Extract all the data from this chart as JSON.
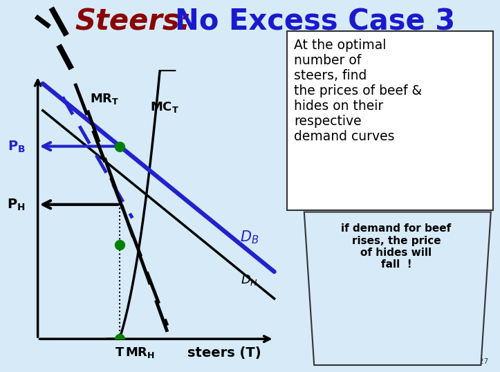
{
  "bg_color": "#d6eaf8",
  "title_steers": "Steers:",
  "title_rest": "  No Excess Case 3",
  "title_steers_color": "#8B0000",
  "title_rest_color": "#1a1acd",
  "title_fontsize": 30,
  "text_box_text": "At the optimal\nnumber of\nsteers, find\nthe prices of beef &\nhides on their\nrespective\ndemand curves",
  "trapezoid_text": "if demand for beef\nrises, the price\nof hides will\nfall  !",
  "slide_label": "Slide 27",
  "green_dot_color": "#008000",
  "blue_line_color": "#2222cc",
  "PB_color": "#2222cc",
  "PH_color": "#000000"
}
